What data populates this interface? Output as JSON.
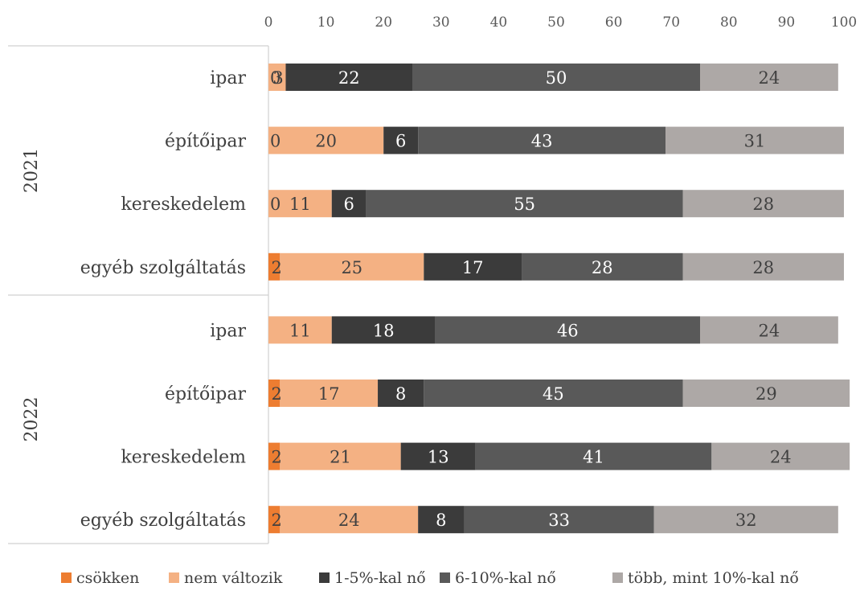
{
  "chart_data": {
    "type": "bar",
    "orientation": "horizontal",
    "stacked": true,
    "title": "",
    "xlim": [
      0,
      100
    ],
    "x_ticks": [
      "0",
      "10",
      "20",
      "30",
      "40",
      "50",
      "60",
      "70",
      "80",
      "90",
      "100"
    ],
    "x_axis_position": "top",
    "grid": false,
    "legend_position": "bottom",
    "groups": [
      "2021",
      "2022"
    ],
    "categories": [
      {
        "group": "2021",
        "label": "ipar"
      },
      {
        "group": "2021",
        "label": "építőipar"
      },
      {
        "group": "2021",
        "label": "kereskedelem"
      },
      {
        "group": "2021",
        "label": "egyéb szolgáltatás"
      },
      {
        "group": "2022",
        "label": "ipar"
      },
      {
        "group": "2022",
        "label": "építőipar"
      },
      {
        "group": "2022",
        "label": "kereskedelem"
      },
      {
        "group": "2022",
        "label": "egyéb szolgáltatás"
      }
    ],
    "series": [
      {
        "name": "csökken",
        "color": "#ED7D31",
        "label_color": "#404040",
        "values": [
          0,
          0,
          0,
          2,
          0,
          2,
          2,
          2
        ],
        "labels": [
          "0",
          "0",
          "0",
          "2",
          "",
          "2",
          "2",
          "2"
        ]
      },
      {
        "name": "nem változik",
        "color": "#F4B183",
        "label_color": "#404040",
        "values": [
          3,
          20,
          11,
          25,
          11,
          17,
          21,
          24
        ],
        "labels": [
          "3",
          "20",
          "11",
          "25",
          "11",
          "17",
          "21",
          "24"
        ]
      },
      {
        "name": "1-5%-kal nő",
        "color": "#3B3B3B",
        "label_color": "#ffffff",
        "values": [
          22,
          6,
          6,
          17,
          18,
          8,
          13,
          8
        ],
        "labels": [
          "22",
          "6",
          "6",
          "17",
          "18",
          "8",
          "13",
          "8"
        ]
      },
      {
        "name": "6-10%-kal nő",
        "color": "#595959",
        "label_color": "#ffffff",
        "values": [
          50,
          43,
          55,
          28,
          46,
          45,
          41,
          33
        ],
        "labels": [
          "50",
          "43",
          "55",
          "28",
          "46",
          "45",
          "41",
          "33"
        ]
      },
      {
        "name": "több, mint 10%-kal nő",
        "color": "#ADA8A6",
        "label_color": "#404040",
        "values": [
          24,
          31,
          28,
          28,
          24,
          29,
          24,
          32
        ],
        "labels": [
          "24",
          "31",
          "28",
          "28",
          "24",
          "29",
          "24",
          "32"
        ]
      }
    ]
  }
}
